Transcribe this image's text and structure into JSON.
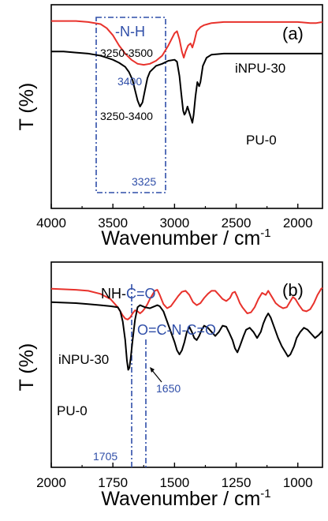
{
  "colors": {
    "red": "#e8322c",
    "black": "#000000",
    "blue": "#2f4ea8"
  },
  "chart_data": [
    {
      "type": "line",
      "panel_label": "(a)",
      "xlabel": "Wavenumber / cm",
      "xlabel_sup": "-1",
      "ylabel": "T (%)",
      "xlim": [
        4000,
        1800
      ],
      "x_ticks": [
        4000,
        3500,
        3000,
        2500,
        2000
      ],
      "grid": false,
      "series": [
        {
          "name": "iNPU-30",
          "color": "#e8322c",
          "points": [
            [
              4000,
              92
            ],
            [
              3800,
              92
            ],
            [
              3700,
              91.5
            ],
            [
              3600,
              90.5
            ],
            [
              3550,
              88.5
            ],
            [
              3500,
              85
            ],
            [
              3450,
              80
            ],
            [
              3400,
              76
            ],
            [
              3350,
              73
            ],
            [
              3300,
              71
            ],
            [
              3250,
              70.5
            ],
            [
              3200,
              71
            ],
            [
              3150,
              72.5
            ],
            [
              3100,
              75
            ],
            [
              3050,
              80
            ],
            [
              3000,
              86
            ],
            [
              2980,
              87
            ],
            [
              2960,
              83
            ],
            [
              2940,
              77
            ],
            [
              2925,
              74
            ],
            [
              2910,
              77
            ],
            [
              2890,
              80
            ],
            [
              2870,
              81
            ],
            [
              2855,
              79
            ],
            [
              2840,
              82
            ],
            [
              2820,
              87
            ],
            [
              2790,
              89
            ],
            [
              2760,
              90
            ],
            [
              2730,
              90.5
            ],
            [
              2700,
              91
            ],
            [
              2600,
              91.5
            ],
            [
              2400,
              91.5
            ],
            [
              2200,
              91.5
            ],
            [
              2000,
              91.5
            ],
            [
              1900,
              91
            ],
            [
              1850,
              91
            ],
            [
              1800,
              91.5
            ]
          ]
        },
        {
          "name": "PU-0",
          "color": "#000000",
          "points": [
            [
              4000,
              77
            ],
            [
              3900,
              77
            ],
            [
              3800,
              76.5
            ],
            [
              3700,
              76
            ],
            [
              3650,
              75.5
            ],
            [
              3600,
              75
            ],
            [
              3550,
              74
            ],
            [
              3500,
              73
            ],
            [
              3450,
              71.5
            ],
            [
              3400,
              69.5
            ],
            [
              3370,
              67
            ],
            [
              3340,
              63
            ],
            [
              3320,
              58
            ],
            [
              3300,
              53
            ],
            [
              3280,
              50
            ],
            [
              3260,
              52
            ],
            [
              3240,
              58
            ],
            [
              3220,
              64
            ],
            [
              3200,
              67
            ],
            [
              3150,
              70
            ],
            [
              3100,
              71
            ],
            [
              3050,
              72.5
            ],
            [
              3000,
              73
            ],
            [
              2980,
              72
            ],
            [
              2960,
              65
            ],
            [
              2945,
              56
            ],
            [
              2930,
              48
            ],
            [
              2920,
              46
            ],
            [
              2910,
              47
            ],
            [
              2895,
              50
            ],
            [
              2880,
              47
            ],
            [
              2865,
              44
            ],
            [
              2855,
              42
            ],
            [
              2845,
              46
            ],
            [
              2830,
              55
            ],
            [
              2815,
              62
            ],
            [
              2800,
              60
            ],
            [
              2790,
              62
            ],
            [
              2770,
              70
            ],
            [
              2740,
              74
            ],
            [
              2700,
              75.5
            ],
            [
              2600,
              76
            ],
            [
              2400,
              76
            ],
            [
              2200,
              76
            ],
            [
              2000,
              76
            ],
            [
              1900,
              76
            ],
            [
              1800,
              76
            ]
          ]
        }
      ],
      "annotations": {
        "group_label": "-N-H",
        "red_range": "3250-3500",
        "red_peak": "3400",
        "black_range": "3250-3400",
        "black_peak": "3325"
      }
    },
    {
      "type": "line",
      "panel_label": "(b)",
      "xlabel": "Wavenumber / cm",
      "xlabel_sup": "-1",
      "ylabel": "T (%)",
      "xlim": [
        2000,
        900
      ],
      "x_ticks": [
        2000,
        1750,
        1500,
        1250,
        1000
      ],
      "grid": false,
      "series": [
        {
          "name": "iNPU-30",
          "color": "#e8322c",
          "points": [
            [
              2000,
              87
            ],
            [
              1900,
              86.5
            ],
            [
              1850,
              86
            ],
            [
              1800,
              84.5
            ],
            [
              1760,
              82
            ],
            [
              1730,
              78
            ],
            [
              1710,
              74
            ],
            [
              1700,
              72.5
            ],
            [
              1690,
              72
            ],
            [
              1680,
              73
            ],
            [
              1670,
              75
            ],
            [
              1660,
              76.5
            ],
            [
              1650,
              76
            ],
            [
              1640,
              75
            ],
            [
              1630,
              76
            ],
            [
              1620,
              77.5
            ],
            [
              1610,
              79.5
            ],
            [
              1600,
              82
            ],
            [
              1590,
              84
            ],
            [
              1580,
              86
            ],
            [
              1570,
              86.5
            ],
            [
              1560,
              84
            ],
            [
              1545,
              79.5
            ],
            [
              1530,
              77.5
            ],
            [
              1515,
              78.5
            ],
            [
              1500,
              81
            ],
            [
              1485,
              83.5
            ],
            [
              1470,
              85.5
            ],
            [
              1455,
              86
            ],
            [
              1440,
              84
            ],
            [
              1425,
              80.5
            ],
            [
              1410,
              79
            ],
            [
              1395,
              80
            ],
            [
              1380,
              82.5
            ],
            [
              1365,
              84.5
            ],
            [
              1350,
              86
            ],
            [
              1335,
              86
            ],
            [
              1320,
              84
            ],
            [
              1305,
              82
            ],
            [
              1290,
              81
            ],
            [
              1275,
              82.5
            ],
            [
              1265,
              85
            ],
            [
              1255,
              85.5
            ],
            [
              1245,
              83
            ],
            [
              1235,
              80
            ],
            [
              1225,
              78
            ],
            [
              1215,
              76.5
            ],
            [
              1205,
              75
            ],
            [
              1190,
              75.5
            ],
            [
              1175,
              78
            ],
            [
              1160,
              82
            ],
            [
              1145,
              85
            ],
            [
              1130,
              84
            ],
            [
              1120,
              86
            ],
            [
              1105,
              83
            ],
            [
              1090,
              80
            ],
            [
              1075,
              78.5
            ],
            [
              1060,
              77.5
            ],
            [
              1045,
              78
            ],
            [
              1035,
              80
            ],
            [
              1020,
              83
            ],
            [
              1010,
              82
            ],
            [
              995,
              79
            ],
            [
              980,
              76.5
            ],
            [
              965,
              76
            ],
            [
              950,
              77
            ],
            [
              935,
              80
            ],
            [
              920,
              84
            ],
            [
              905,
              87
            ],
            [
              900,
              87.5
            ]
          ]
        },
        {
          "name": "PU-0",
          "color": "#000000",
          "points": [
            [
              2000,
              80.5
            ],
            [
              1900,
              80
            ],
            [
              1850,
              79.5
            ],
            [
              1800,
              79
            ],
            [
              1760,
              78.5
            ],
            [
              1730,
              78
            ],
            [
              1720,
              76
            ],
            [
              1710,
              71
            ],
            [
              1700,
              62
            ],
            [
              1693,
              52
            ],
            [
              1688,
              47.5
            ],
            [
              1683,
              48.5
            ],
            [
              1678,
              53
            ],
            [
              1670,
              62
            ],
            [
              1660,
              72
            ],
            [
              1650,
              78
            ],
            [
              1640,
              79
            ],
            [
              1620,
              78
            ],
            [
              1600,
              77.5
            ],
            [
              1590,
              78
            ],
            [
              1580,
              78.5
            ],
            [
              1570,
              79
            ],
            [
              1560,
              78.5
            ],
            [
              1545,
              76
            ],
            [
              1530,
              71
            ],
            [
              1515,
              66
            ],
            [
              1500,
              61
            ],
            [
              1490,
              57
            ],
            [
              1480,
              55
            ],
            [
              1470,
              57
            ],
            [
              1460,
              61
            ],
            [
              1450,
              66
            ],
            [
              1440,
              68.5
            ],
            [
              1430,
              66
            ],
            [
              1420,
              63
            ],
            [
              1410,
              62
            ],
            [
              1400,
              64
            ],
            [
              1390,
              67
            ],
            [
              1380,
              69
            ],
            [
              1365,
              68
            ],
            [
              1350,
              66
            ],
            [
              1335,
              64
            ],
            [
              1320,
              66
            ],
            [
              1305,
              69
            ],
            [
              1290,
              68.5
            ],
            [
              1280,
              66
            ],
            [
              1265,
              62
            ],
            [
              1255,
              58
            ],
            [
              1245,
              56
            ],
            [
              1235,
              59
            ],
            [
              1220,
              64
            ],
            [
              1210,
              67
            ],
            [
              1195,
              68
            ],
            [
              1180,
              66
            ],
            [
              1165,
              63
            ],
            [
              1150,
              66
            ],
            [
              1140,
              70
            ],
            [
              1130,
              73
            ],
            [
              1120,
              75
            ],
            [
              1110,
              73
            ],
            [
              1095,
              68
            ],
            [
              1080,
              63
            ],
            [
              1065,
              59
            ],
            [
              1050,
              56
            ],
            [
              1040,
              54
            ],
            [
              1030,
              55
            ],
            [
              1015,
              59
            ],
            [
              1005,
              63
            ],
            [
              990,
              66
            ],
            [
              975,
              68
            ],
            [
              960,
              67
            ],
            [
              945,
              65
            ],
            [
              930,
              63
            ],
            [
              915,
              64.5
            ],
            [
              900,
              66.5
            ]
          ]
        }
      ],
      "annotations": {
        "label_nh": "NH-",
        "label_nh_co": "C=O",
        "label_ococ": "O=C-N-C=O",
        "peak_1705": "1705",
        "peak_1650": "1650"
      }
    }
  ]
}
